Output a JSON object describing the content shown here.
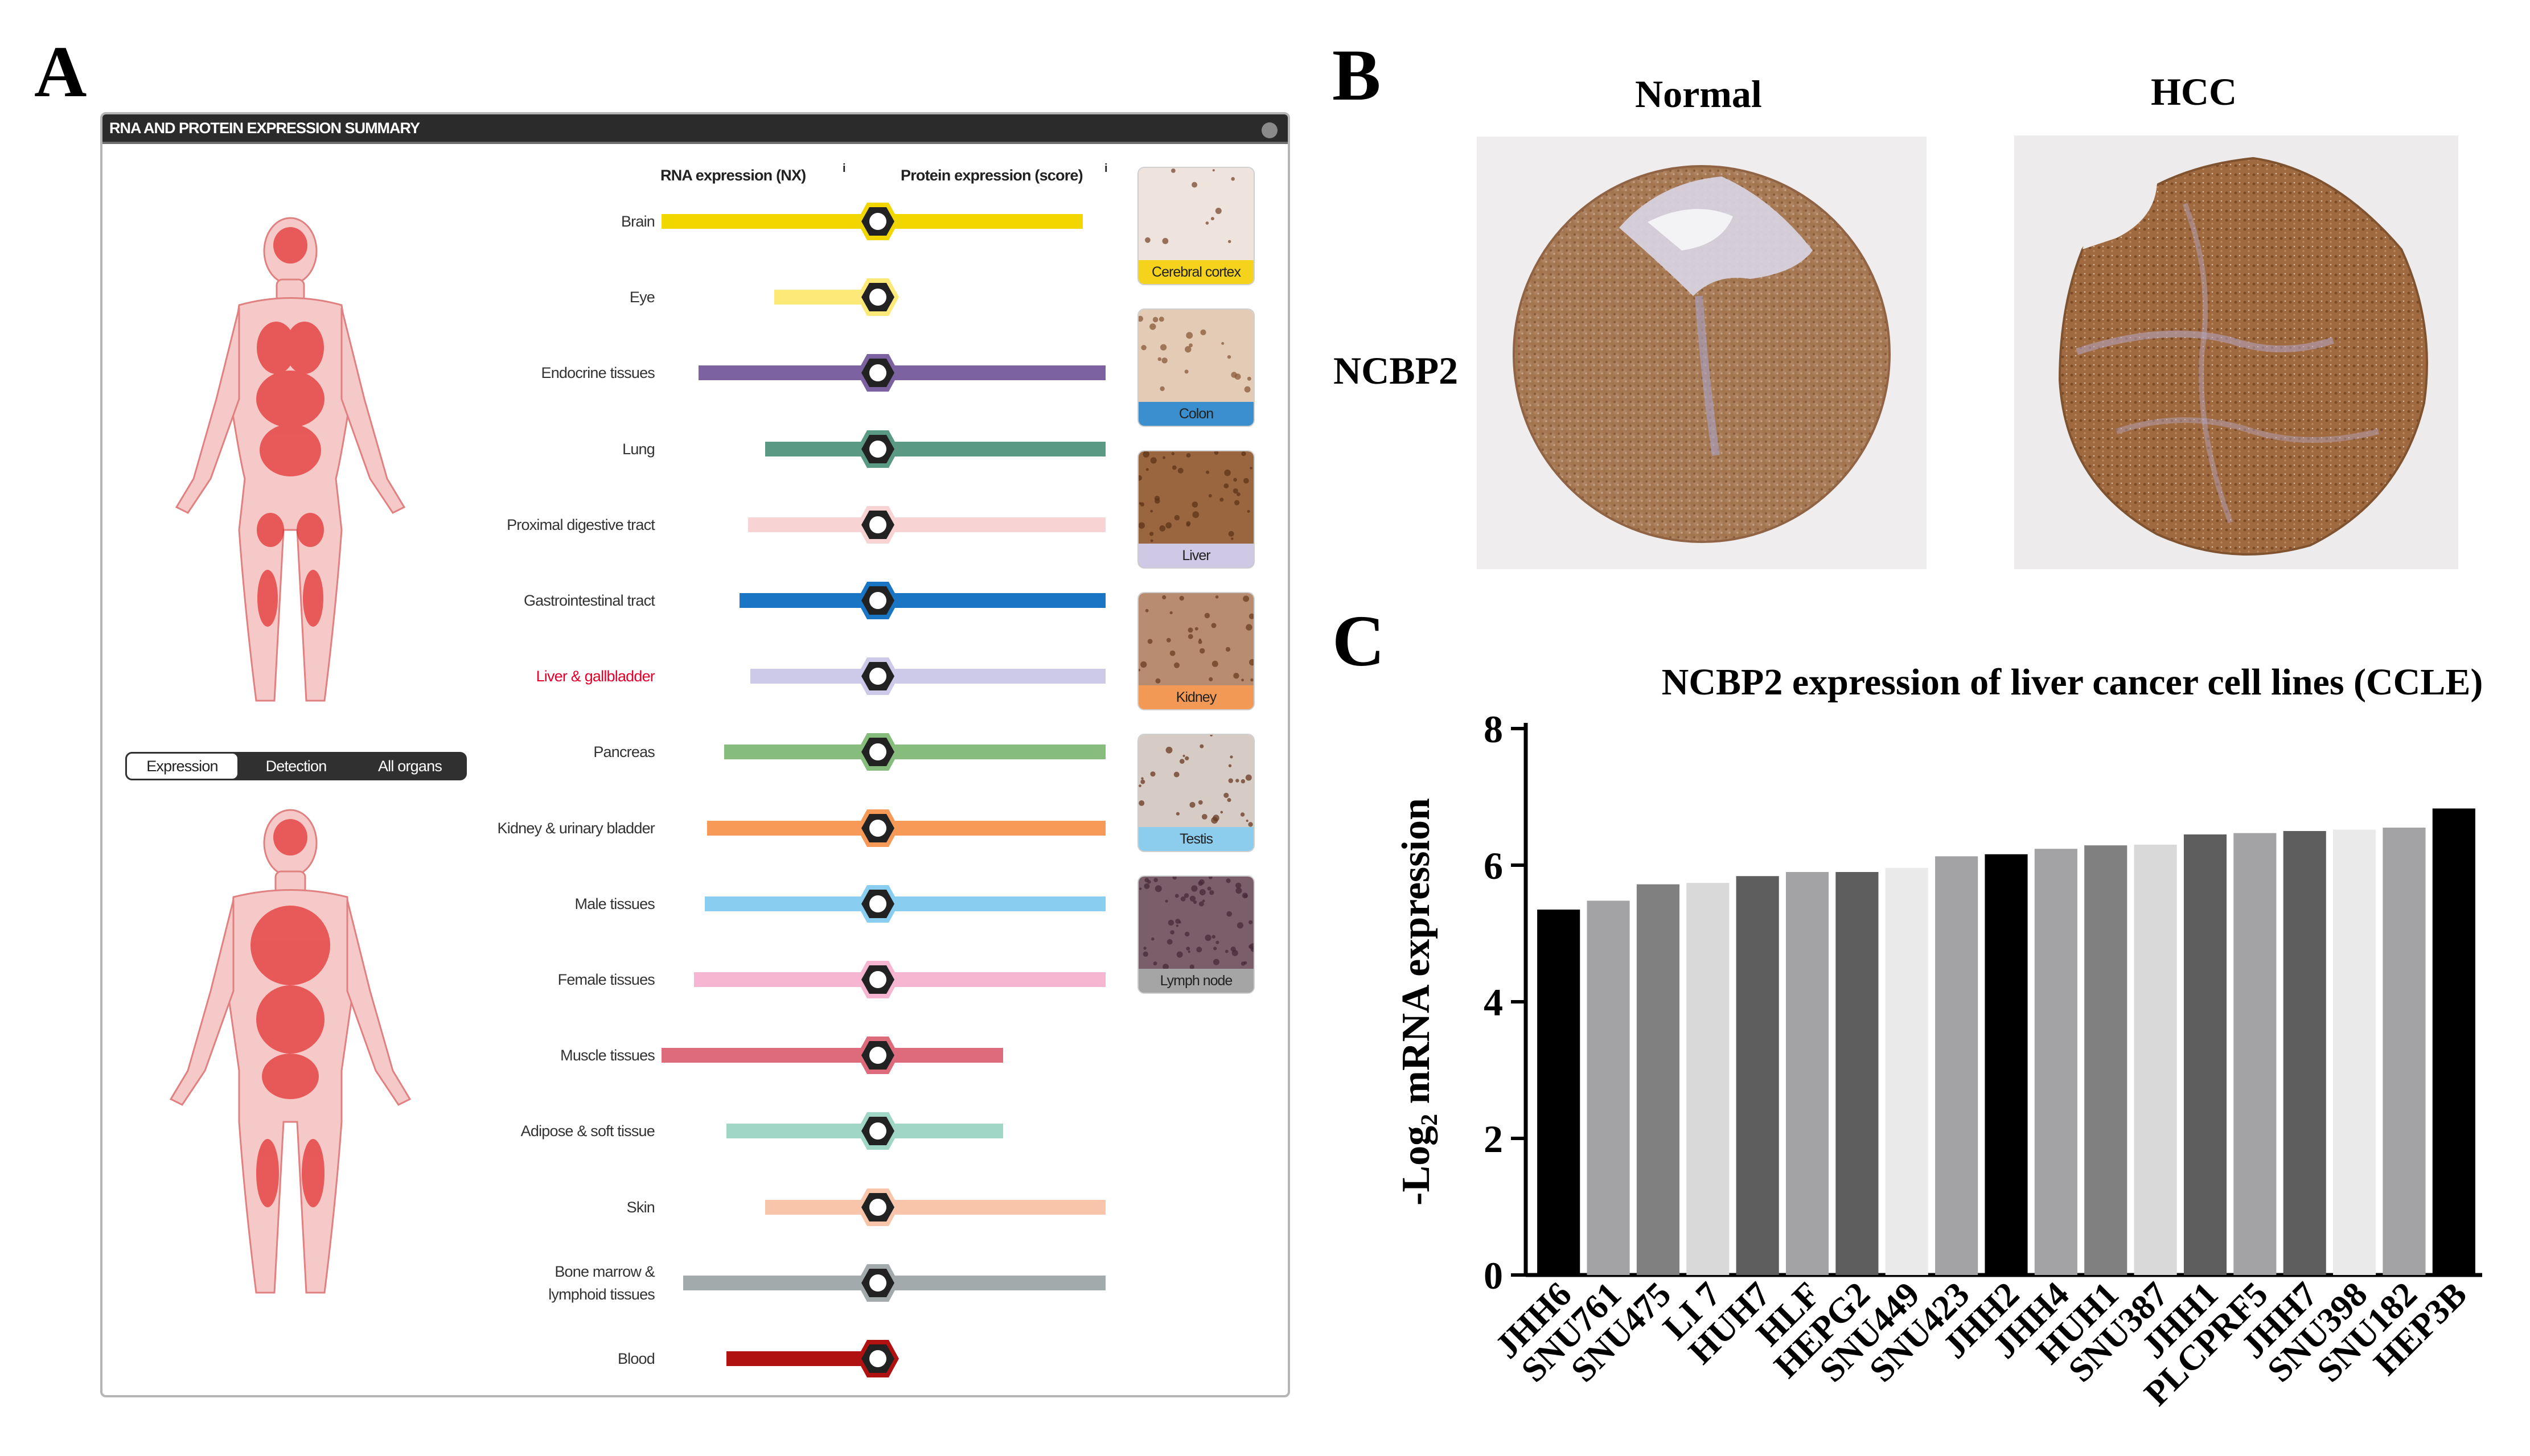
{
  "panels": {
    "a": "A",
    "b": "B",
    "c": "C"
  },
  "panel_a": {
    "header_title": "RNA AND PROTEIN EXPRESSION SUMMARY",
    "rna_col": "RNA expression (NX)",
    "protein_col": "Protein expression (score)",
    "tissues": [
      {
        "label": "Brain",
        "color": "#f2d600",
        "rna": 1.0,
        "protein": 0.9
      },
      {
        "label": "Eye",
        "color": "#fde978",
        "rna": 0.48,
        "protein": 0.0
      },
      {
        "label": "Endocrine tissues",
        "color": "#7c62a0",
        "rna": 0.83,
        "protein": 1.0
      },
      {
        "label": "Lung",
        "color": "#5a9a85",
        "rna": 0.52,
        "protein": 1.0
      },
      {
        "label": "Proximal digestive tract",
        "color": "#f8d3d4",
        "rna": 0.6,
        "protein": 1.0
      },
      {
        "label": "Gastrointestinal tract",
        "color": "#1a76c4",
        "rna": 0.64,
        "protein": 1.0
      },
      {
        "label": "Liver & gallbladder",
        "color": "#cdc9e8",
        "rna": 0.59,
        "protein": 1.0,
        "highlight": true
      },
      {
        "label": "Pancreas",
        "color": "#86bc7c",
        "rna": 0.71,
        "protein": 1.0
      },
      {
        "label": "Kidney & urinary bladder",
        "color": "#f79a57",
        "rna": 0.79,
        "protein": 1.0
      },
      {
        "label": "Male tissues",
        "color": "#89cdf0",
        "rna": 0.8,
        "protein": 1.0
      },
      {
        "label": "Female tissues",
        "color": "#f6b5d0",
        "rna": 0.85,
        "protein": 1.0
      },
      {
        "label": "Muscle tissues",
        "color": "#dd6b7b",
        "rna": 1.0,
        "protein": 0.55
      },
      {
        "label": "Adipose & soft tissue",
        "color": "#9fd6c5",
        "rna": 0.7,
        "protein": 0.55
      },
      {
        "label": "Skin",
        "color": "#f8c4aa",
        "rna": 0.52,
        "protein": 1.0
      },
      {
        "label": "Bone marrow & lymphoid tissues",
        "color": "#a2aaab",
        "rna": 0.9,
        "protein": 1.0
      },
      {
        "label": "Blood",
        "color": "#b01212",
        "rna": 0.7,
        "protein": 0.0
      }
    ],
    "thumbnails": [
      {
        "label": "Cerebral cortex",
        "color": "#f5d21b",
        "tissue_bg": "#efe4dd",
        "stain": "#7a4a30",
        "cells": 10
      },
      {
        "label": "Colon",
        "color": "#3b8fcf",
        "tissue_bg": "#e4cbb6",
        "stain": "#8a5a3a",
        "cells": 20
      },
      {
        "label": "Liver",
        "color": "#cfc9e6",
        "tissue_bg": "#9a6640",
        "stain": "#5e3418",
        "cells": 40
      },
      {
        "label": "Kidney",
        "color": "#f29a55",
        "tissue_bg": "#b88c70",
        "stain": "#6b3d22",
        "cells": 30
      },
      {
        "label": "Testis",
        "color": "#8ccdee",
        "tissue_bg": "#d7cbc6",
        "stain": "#6a3a22",
        "cells": 30
      },
      {
        "label": "Lymph node",
        "color": "#a5a5a5",
        "tissue_bg": "#7a5e6a",
        "stain": "#4a2a3a",
        "cells": 60
      }
    ],
    "toggle": [
      "Expression",
      "Detection",
      "All organs"
    ]
  },
  "panel_b": {
    "normal_title": "Normal",
    "hcc_title": "HCC",
    "gene_label": "NCBP2"
  },
  "chart_data": {
    "type": "bar",
    "title": "NCBP2 expression of liver cancer cell lines (CCLE)",
    "xlabel": "",
    "ylabel": "-Log₂ mRNA expression",
    "ylim": [
      0,
      8
    ],
    "yticks": [
      0,
      2,
      4,
      6,
      8
    ],
    "categories": [
      "JHH6",
      "SNU761",
      "SNU475",
      "LI 7",
      "HUH7",
      "HLF",
      "HEPG2",
      "SNU449",
      "SNU423",
      "JHH2",
      "JHH4",
      "HUH1",
      "SNU387",
      "JHH1",
      "PLCPRF5",
      "JHH7",
      "SNU398",
      "SNU182",
      "HEP3B"
    ],
    "values": [
      5.35,
      5.48,
      5.72,
      5.74,
      5.84,
      5.9,
      5.9,
      5.96,
      6.13,
      6.16,
      6.24,
      6.29,
      6.3,
      6.45,
      6.47,
      6.5,
      6.52,
      6.55,
      6.83
    ],
    "bar_colors": [
      "#000000",
      "#a3a3a6",
      "#808080",
      "#d9d9d9",
      "#5e5e5e",
      "#a3a3a6",
      "#5e5e5e",
      "#eaeaea",
      "#a3a3a6",
      "#000000",
      "#a3a3a6",
      "#808080",
      "#d9d9d9",
      "#5e5e5e",
      "#a3a3a6",
      "#5e5e5e",
      "#eaeaea",
      "#a3a3a6",
      "#000000"
    ]
  }
}
